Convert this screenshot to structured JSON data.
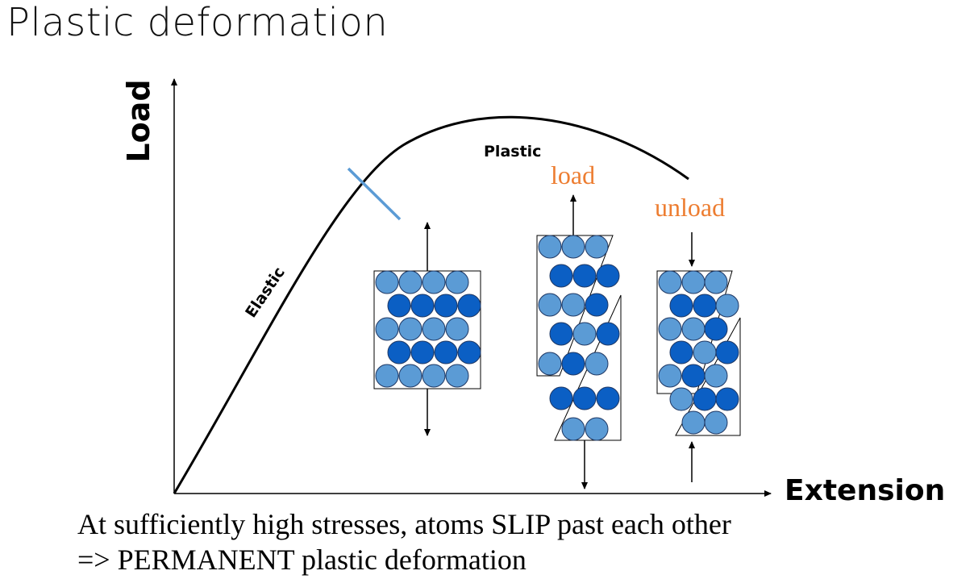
{
  "slide": {
    "title": "Plastic deformation"
  },
  "diagram": {
    "y_axis_label": "Load",
    "x_axis_label": "Extension",
    "curve_labels": {
      "elastic": "Elastic",
      "plastic": "Plastic"
    },
    "state_labels": {
      "load": "load",
      "unload": "unload"
    },
    "colors": {
      "atom_light": "#5b9bd5",
      "atom_dark": "#0b5fc4",
      "atom_outline": "#1f3864",
      "yield_marker": "#5b9bd5",
      "state_label": "#ed7d31",
      "curve": "#000000"
    }
  },
  "caption": {
    "line1": "At sufficiently high stresses, atoms SLIP past each other",
    "line2": "=> PERMANENT plastic deformation"
  }
}
